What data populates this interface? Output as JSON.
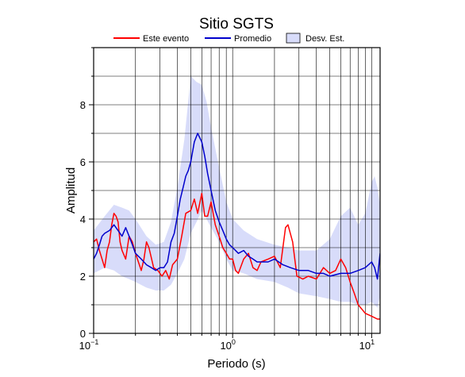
{
  "chart_data": {
    "type": "line",
    "title": "Sitio SGTS",
    "xlabel": "Periodo (s)",
    "ylabel": "Amplitud",
    "xscale": "log",
    "xlim": [
      0.1,
      11.5
    ],
    "ylim": [
      0,
      10
    ],
    "grid": true,
    "legend_position": "top",
    "x_ticks": [
      {
        "value": 0.1,
        "base": "10",
        "exp": "−1"
      },
      {
        "value": 1,
        "base": "10",
        "exp": "0"
      },
      {
        "value": 10,
        "base": "10",
        "exp": "1"
      }
    ],
    "y_ticks": [
      0,
      2,
      4,
      6,
      8
    ],
    "legend": [
      {
        "label": "Este evento",
        "kind": "line",
        "color": "#ff0000"
      },
      {
        "label": "Promedio",
        "kind": "line",
        "color": "#0000cc"
      },
      {
        "label": "Desv. Est.",
        "kind": "band",
        "color": "#d8dcfa"
      }
    ],
    "series": [
      {
        "name": "Este evento",
        "color": "#ff0000",
        "x": [
          0.1,
          0.105,
          0.11,
          0.115,
          0.12,
          0.125,
          0.13,
          0.135,
          0.14,
          0.145,
          0.15,
          0.155,
          0.16,
          0.17,
          0.18,
          0.19,
          0.2,
          0.21,
          0.22,
          0.23,
          0.24,
          0.25,
          0.27,
          0.29,
          0.31,
          0.33,
          0.35,
          0.37,
          0.4,
          0.43,
          0.46,
          0.5,
          0.53,
          0.56,
          0.6,
          0.63,
          0.66,
          0.7,
          0.75,
          0.8,
          0.85,
          0.9,
          0.95,
          1.0,
          1.05,
          1.1,
          1.2,
          1.3,
          1.4,
          1.5,
          1.6,
          1.8,
          2.0,
          2.2,
          2.4,
          2.5,
          2.7,
          2.9,
          3.2,
          3.5,
          4.0,
          4.5,
          5.0,
          5.5,
          6.0,
          6.5,
          7.0,
          7.5,
          8.0,
          9.0,
          10.0,
          11.0,
          11.5
        ],
        "y": [
          3.2,
          3.3,
          2.9,
          2.6,
          2.3,
          2.9,
          3.2,
          3.8,
          4.2,
          4.1,
          3.9,
          3.2,
          2.9,
          2.6,
          3.4,
          3.2,
          2.8,
          2.5,
          2.2,
          2.6,
          3.2,
          3.0,
          2.3,
          2.2,
          2.0,
          2.2,
          1.9,
          2.4,
          2.6,
          3.4,
          4.2,
          4.3,
          4.7,
          4.2,
          4.9,
          4.1,
          4.1,
          4.6,
          3.8,
          3.4,
          3.0,
          2.8,
          2.6,
          2.6,
          2.2,
          2.1,
          2.6,
          2.8,
          2.3,
          2.2,
          2.5,
          2.6,
          2.7,
          2.3,
          3.7,
          3.8,
          3.2,
          2.0,
          1.9,
          2.0,
          1.9,
          2.3,
          2.1,
          2.2,
          2.6,
          2.3,
          1.8,
          1.4,
          1.0,
          0.7,
          0.6,
          0.5,
          0.5
        ]
      },
      {
        "name": "Promedio",
        "color": "#0000cc",
        "x": [
          0.1,
          0.105,
          0.11,
          0.115,
          0.12,
          0.13,
          0.14,
          0.15,
          0.16,
          0.17,
          0.18,
          0.19,
          0.2,
          0.22,
          0.24,
          0.26,
          0.28,
          0.3,
          0.32,
          0.34,
          0.36,
          0.38,
          0.4,
          0.42,
          0.44,
          0.46,
          0.48,
          0.5,
          0.53,
          0.56,
          0.6,
          0.63,
          0.66,
          0.7,
          0.75,
          0.8,
          0.85,
          0.9,
          0.95,
          1.0,
          1.1,
          1.2,
          1.3,
          1.4,
          1.5,
          1.6,
          1.8,
          2.0,
          2.3,
          2.6,
          3.0,
          3.5,
          4.0,
          4.5,
          5.0,
          6.0,
          7.0,
          8.0,
          9.0,
          10.0,
          10.5,
          11.0,
          11.5
        ],
        "y": [
          2.6,
          2.8,
          3.1,
          3.4,
          3.5,
          3.6,
          3.8,
          3.6,
          3.4,
          3.7,
          3.4,
          3.1,
          2.8,
          2.6,
          2.4,
          2.3,
          2.2,
          2.3,
          2.3,
          2.5,
          3.2,
          3.5,
          4.1,
          4.7,
          5.1,
          5.5,
          5.7,
          6.0,
          6.7,
          7.0,
          6.7,
          6.2,
          5.6,
          5.0,
          4.3,
          3.9,
          3.6,
          3.3,
          3.1,
          3.0,
          2.8,
          2.9,
          2.7,
          2.6,
          2.5,
          2.5,
          2.5,
          2.6,
          2.4,
          2.3,
          2.2,
          2.2,
          2.1,
          2.1,
          2.0,
          2.1,
          2.1,
          2.2,
          2.3,
          2.5,
          2.3,
          1.9,
          2.8
        ]
      }
    ],
    "band": {
      "name": "Desv. Est.",
      "color": "#d8dcfa",
      "x": [
        0.1,
        0.12,
        0.14,
        0.16,
        0.18,
        0.2,
        0.24,
        0.28,
        0.32,
        0.36,
        0.4,
        0.45,
        0.5,
        0.55,
        0.6,
        0.65,
        0.7,
        0.8,
        0.9,
        1.0,
        1.2,
        1.5,
        2.0,
        2.5,
        3.0,
        4.0,
        5.0,
        6.0,
        7.0,
        8.0,
        9.0,
        10.0,
        10.5,
        11.0,
        11.5
      ],
      "upper": [
        3.6,
        4.1,
        4.5,
        4.4,
        4.3,
        4.0,
        3.4,
        3.1,
        3.2,
        3.9,
        5.1,
        6.8,
        9.0,
        8.8,
        8.7,
        8.1,
        7.2,
        5.8,
        4.6,
        4.0,
        3.6,
        3.3,
        3.1,
        3.0,
        2.9,
        2.9,
        3.3,
        4.1,
        4.4,
        3.8,
        4.2,
        5.3,
        5.5,
        5.1,
        4.5
      ],
      "lower": [
        2.1,
        2.3,
        2.2,
        2.0,
        1.9,
        1.8,
        1.6,
        1.5,
        1.5,
        1.7,
        2.1,
        2.6,
        3.5,
        3.9,
        4.3,
        4.0,
        3.7,
        3.2,
        2.6,
        2.2,
        2.1,
        1.9,
        1.8,
        1.6,
        1.4,
        1.3,
        1.2,
        1.1,
        1.1,
        1.0,
        1.0,
        1.1,
        1.0,
        0.9,
        1.3
      ]
    }
  }
}
